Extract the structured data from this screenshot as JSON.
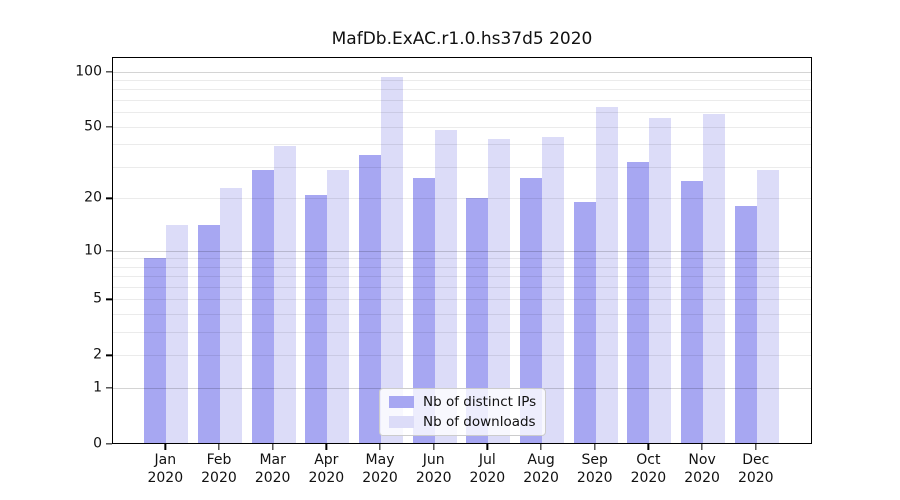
{
  "chart_data": {
    "type": "bar",
    "title": "MafDb.ExAC.r1.0.hs37d5 2020",
    "categories": [
      "Jan",
      "Feb",
      "Mar",
      "Apr",
      "May",
      "Jun",
      "Jul",
      "Aug",
      "Sep",
      "Oct",
      "Nov",
      "Dec"
    ],
    "year_label": "2020",
    "series": [
      {
        "name": "Nb of distinct IPs",
        "color": "#a7a7f2",
        "values": [
          9,
          14,
          29,
          21,
          35,
          26,
          20,
          26,
          19,
          32,
          25,
          18
        ]
      },
      {
        "name": "Nb of downloads",
        "color": "#dcdcf8",
        "values": [
          14,
          23,
          39,
          29,
          93,
          48,
          43,
          44,
          64,
          56,
          59,
          29
        ]
      }
    ],
    "yscale": "log1p",
    "ylim": [
      0,
      120
    ],
    "yticks_labeled": [
      100,
      50,
      20,
      10,
      5,
      2,
      1,
      0
    ],
    "grid_major_values": [
      1,
      10,
      100
    ],
    "grid_minor_values": [
      2,
      3,
      4,
      5,
      6,
      7,
      8,
      9,
      20,
      30,
      40,
      50,
      60,
      70,
      80,
      90
    ],
    "grid": "on",
    "legend_position": "lower center",
    "xlabel": "",
    "ylabel": ""
  },
  "colors": {
    "axis": "#000000",
    "text": "#111111",
    "grid_minor": "rgba(0,0,0,0.08)",
    "grid_major": "rgba(0,0,0,0.17)",
    "legend_border": "#cccccc",
    "background": "#ffffff"
  }
}
